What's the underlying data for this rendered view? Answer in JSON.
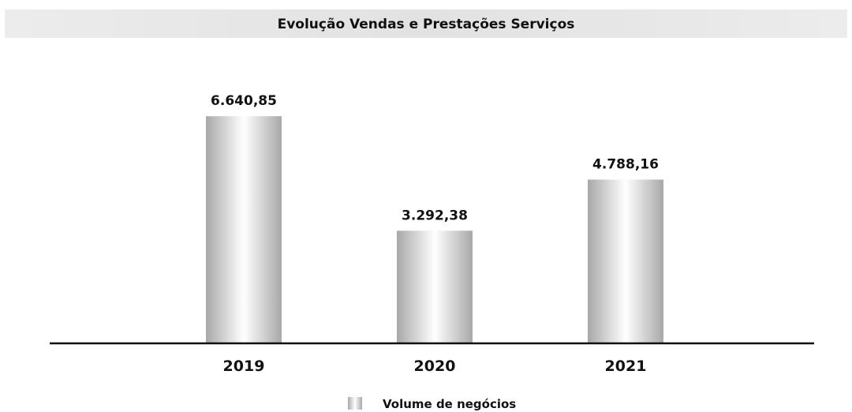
{
  "chart_data": {
    "type": "bar",
    "title": "Evolução Vendas e Prestações Serviços",
    "categories": [
      "2019",
      "2020",
      "2021"
    ],
    "series": [
      {
        "name": "Volume de negócios",
        "values": [
          6640.85,
          3292.38,
          4788.16
        ],
        "labels": [
          "6.640,85",
          "3.292,38",
          "4.788,16"
        ]
      }
    ],
    "ylim": [
      0,
      7500
    ],
    "grid": false,
    "legend_position": "bottom",
    "colors": {
      "bar_edge": "#a8a8a8",
      "bar_center": "#ffffff",
      "axis": "#111111",
      "title_band": "#e6e6e6"
    }
  }
}
